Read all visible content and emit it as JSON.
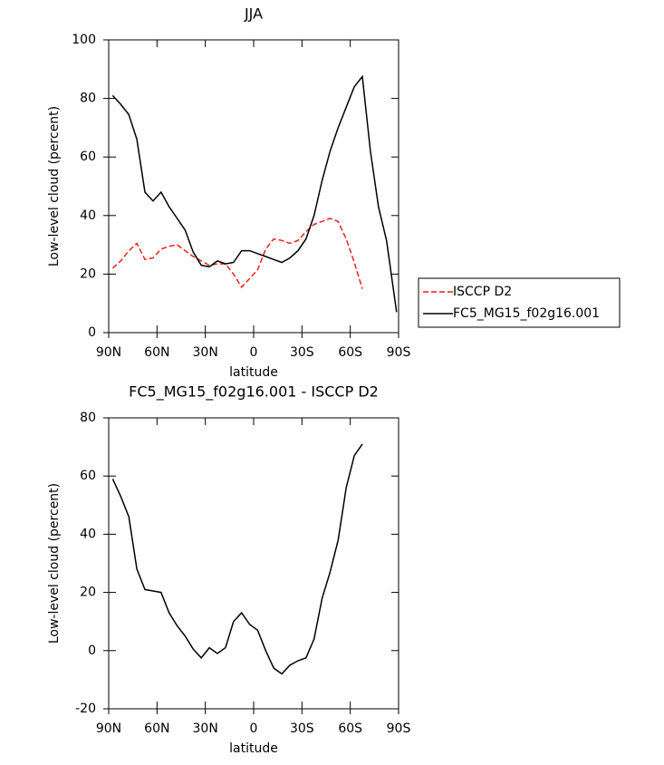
{
  "chart_data": [
    {
      "type": "line",
      "title": "JJA",
      "x_label": "latitude",
      "y_label": "Low-level cloud (percent)",
      "x": [
        87.5,
        82.5,
        77.5,
        72.5,
        67.5,
        62.5,
        57.5,
        52.5,
        47.5,
        42.5,
        37.5,
        32.5,
        27.5,
        22.5,
        17.5,
        12.5,
        7.5,
        2.5,
        -2.5,
        -7.5,
        -12.5,
        -17.5,
        -22.5,
        -27.5,
        -32.5,
        -37.5,
        -42.5,
        -47.5,
        -52.5,
        -57.5,
        -62.5,
        -67.5,
        -72.5,
        -77.5,
        -82.5,
        -88.75
      ],
      "series": [
        {
          "name": "ISCCP D2",
          "color": "#e8201c",
          "linestyle": "dashed",
          "values": [
            22,
            24.5,
            28,
            30.5,
            25,
            25.5,
            28.5,
            29.5,
            30,
            28,
            26,
            24.5,
            23,
            23.5,
            23.5,
            20,
            15.5,
            18.5,
            21.5,
            28.5,
            32,
            31.5,
            30.5,
            31.5,
            34.5,
            37,
            38,
            39,
            38,
            32,
            24,
            15,
            null,
            null,
            null,
            null
          ]
        },
        {
          "name": "FC5_MG15_f02g16.001",
          "color": "#000000",
          "linestyle": "solid",
          "values": [
            81,
            78,
            74.5,
            66,
            48,
            45,
            48,
            43,
            39,
            35,
            27.5,
            23,
            22.5,
            24.5,
            23.5,
            24,
            28,
            28,
            27,
            26,
            25,
            24,
            25.5,
            28,
            32,
            40,
            52,
            62,
            70,
            77,
            84,
            87.5,
            62,
            43,
            31.5,
            7
          ]
        }
      ],
      "xlim": [
        90,
        -90
      ],
      "xticks": [
        {
          "value": 90,
          "label": "90N"
        },
        {
          "value": 60,
          "label": "60N"
        },
        {
          "value": 30,
          "label": "30N"
        },
        0,
        {
          "value": -30,
          "label": "30S"
        },
        {
          "value": -60,
          "label": "60S"
        },
        {
          "value": -90,
          "label": "90S"
        }
      ],
      "ylim": [
        0,
        100
      ],
      "yticks": [
        0,
        20,
        40,
        60,
        80,
        100
      ],
      "legend": "right"
    },
    {
      "type": "line",
      "title": "FC5_MG15_f02g16.001 - ISCCP D2",
      "x_label": "latitude",
      "y_label": "Low-level cloud (percent)",
      "x": [
        87.5,
        82.5,
        77.5,
        72.5,
        67.5,
        62.5,
        57.5,
        52.5,
        47.5,
        42.5,
        37.5,
        32.5,
        27.5,
        22.5,
        17.5,
        12.5,
        7.5,
        2.5,
        -2.5,
        -7.5,
        -12.5,
        -17.5,
        -22.5,
        -27.5,
        -32.5,
        -37.5,
        -42.5,
        -47.5,
        -52.5,
        -57.5,
        -62.5,
        -67.5
      ],
      "series": [
        {
          "color": "#000000",
          "linestyle": "solid",
          "values": [
            59,
            53,
            46,
            28,
            21,
            20.5,
            20,
            13,
            8.5,
            5,
            0.5,
            -2.5,
            1,
            -1,
            1,
            10,
            13,
            9,
            7,
            0,
            -6,
            -8,
            -5,
            -3.5,
            -2.5,
            4,
            18,
            27,
            38,
            56,
            67,
            71
          ]
        }
      ],
      "xlim": [
        90,
        -90
      ],
      "xticks": [
        {
          "value": 90,
          "label": "90N"
        },
        {
          "value": 60,
          "label": "60N"
        },
        {
          "value": 30,
          "label": "30N"
        },
        0,
        {
          "value": -30,
          "label": "30S"
        },
        {
          "value": -60,
          "label": "60S"
        },
        {
          "value": -90,
          "label": "90S"
        }
      ],
      "ylim": [
        -20,
        80
      ],
      "yticks": [
        -20,
        0,
        20,
        40,
        60,
        80
      ]
    }
  ]
}
